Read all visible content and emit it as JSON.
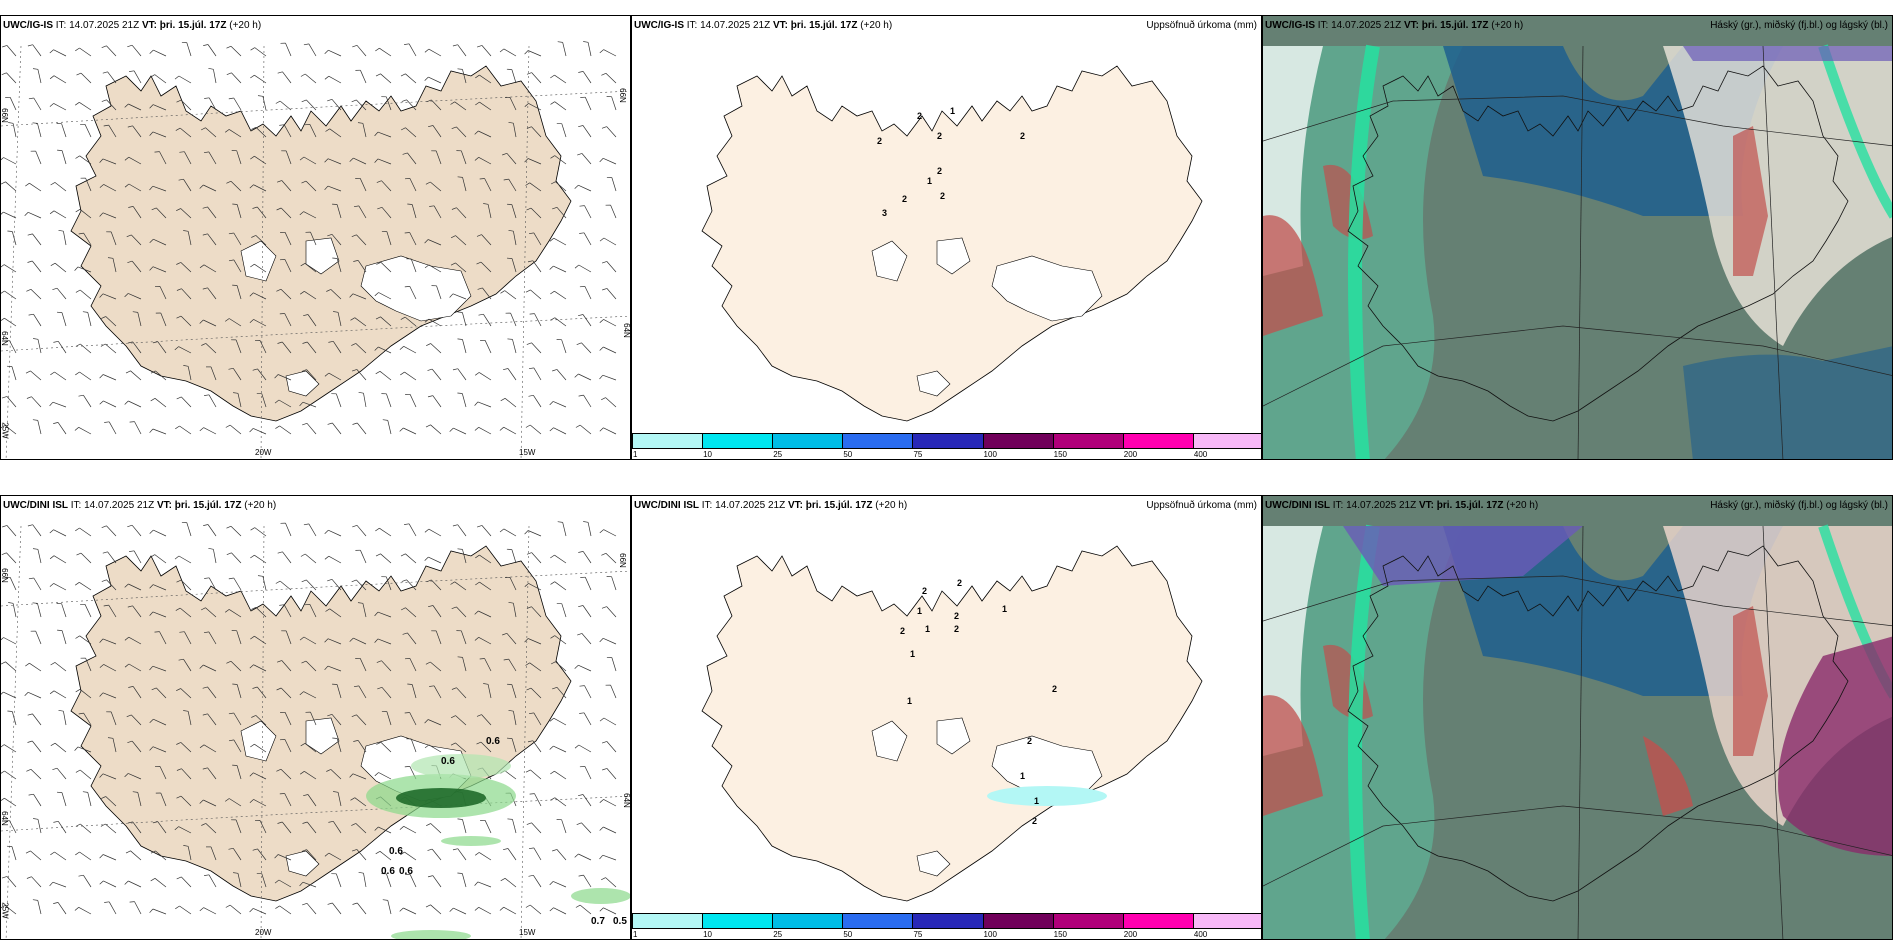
{
  "colors": {
    "land": "#eddcc7",
    "land_light": "#fcf0e2",
    "cloud_green": "#3cbf8a",
    "cloud_dark": "#4a6a5a",
    "cloud_blue": "#1f5f8e",
    "cloud_purple": "#6a5ab8",
    "cloud_red": "#c0504d"
  },
  "common": {
    "it_label": "IT:",
    "it_value": "14.07.2025 21Z",
    "vt_label": "VT:",
    "vt_value": "þri. 15.júl. 17Z",
    "lead": "(+20 h)",
    "precip_title": "Uppsöfnuð úrkoma (mm)",
    "cloud_title": "Háský (gr.), miðský (fj.bl.) og lágský (bl.)",
    "lat_66": "66N",
    "lat_64": "64N",
    "lat_25w": "25W",
    "lon_20w": "20W",
    "lon_15w": "15W"
  },
  "rows": [
    {
      "model": "UWC/IG-IS",
      "precip_labels": [
        "1",
        "2",
        "3",
        "2",
        "2",
        "1",
        "2",
        "2",
        "2",
        "2"
      ],
      "wind_labels": []
    },
    {
      "model": "UWC/DINI ISL",
      "precip_labels": [
        "2",
        "2",
        "1",
        "2",
        "1",
        "2",
        "1",
        "2",
        "1",
        "1",
        "2",
        "2",
        "1",
        "1",
        "2"
      ],
      "wind_labels": [
        "0.6",
        "0.6",
        "0.6",
        "0.6",
        "0.6",
        "0.7",
        "0.5"
      ]
    }
  ],
  "colorbar": {
    "ticks": [
      "1",
      "10",
      "25",
      "50",
      "75",
      "100",
      "150",
      "200",
      "400"
    ],
    "colors": [
      "#b3f7f5",
      "#00e6f0",
      "#00bde6",
      "#2a6cf0",
      "#2828b8",
      "#70005a",
      "#b0007a",
      "#ff00b0",
      "#f7b8f7"
    ]
  }
}
